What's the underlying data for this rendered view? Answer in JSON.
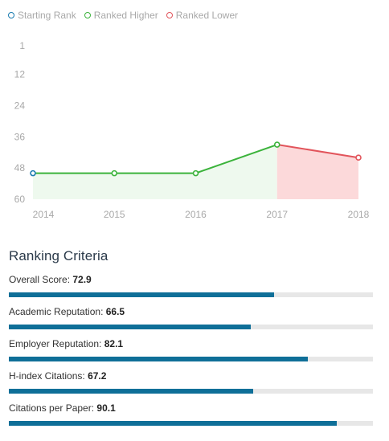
{
  "legend": {
    "starting": {
      "label": "Starting Rank",
      "color": "#1a7bb0"
    },
    "higher": {
      "label": "Ranked Higher",
      "color": "#3bb33b"
    },
    "lower": {
      "label": "Ranked Lower",
      "color": "#e2545b"
    }
  },
  "chart_data": {
    "type": "line",
    "x": [
      "2014",
      "2015",
      "2016",
      "2017",
      "2018"
    ],
    "y": [
      50,
      50,
      50,
      39,
      44
    ],
    "y_ticks": [
      "1",
      "12",
      "24",
      "36",
      "48",
      "60"
    ],
    "y_tick_values": [
      1,
      12,
      24,
      36,
      48,
      60
    ],
    "ylim": [
      1,
      60
    ],
    "y_inverted": true,
    "colors": {
      "higher_line": "#3bb33b",
      "higher_fill": "#eef9ee",
      "lower_line": "#e2545b",
      "lower_fill": "#fcd9da",
      "start_marker": "#1a7bb0",
      "axis_text": "#a8a8a8"
    },
    "title": "",
    "xlabel": "",
    "ylabel": ""
  },
  "criteria": {
    "title": "Ranking Criteria",
    "items": [
      {
        "label": "Overall Score:",
        "value": "72.9",
        "pct": 72.9
      },
      {
        "label": "Academic Reputation:",
        "value": "66.5",
        "pct": 66.5
      },
      {
        "label": "Employer Reputation:",
        "value": "82.1",
        "pct": 82.1
      },
      {
        "label": "H-index Citations:",
        "value": "67.2",
        "pct": 67.2
      },
      {
        "label": "Citations per Paper:",
        "value": "90.1",
        "pct": 90.1
      }
    ]
  }
}
